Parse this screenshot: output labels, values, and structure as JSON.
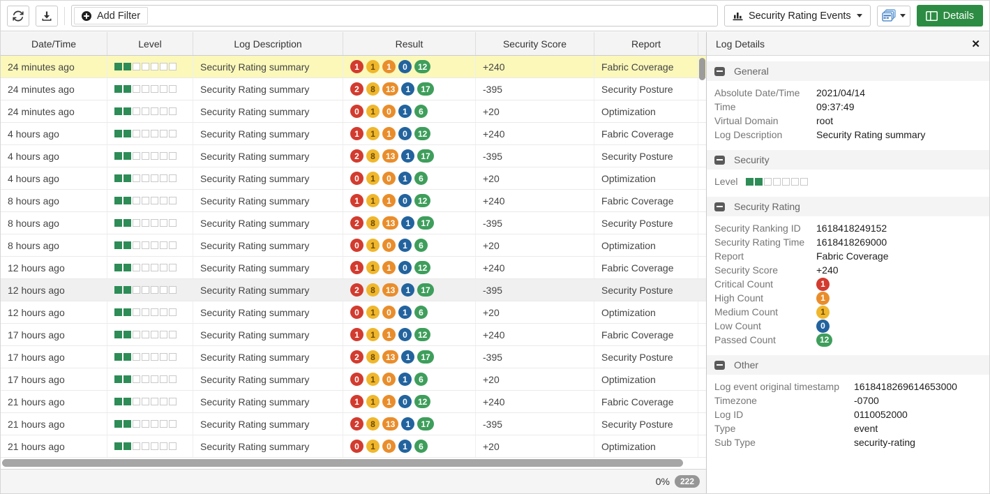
{
  "toolbar": {
    "add_filter": "Add Filter",
    "view_button": "Security Rating Events",
    "details_button": "Details"
  },
  "table": {
    "columns": [
      "Date/Time",
      "Level",
      "Log Description",
      "Result",
      "Security Score",
      "Report"
    ],
    "badge_order": [
      "critical",
      "medium",
      "high",
      "low",
      "passed"
    ],
    "level": {
      "filled": 2,
      "total": 7
    },
    "rows": [
      {
        "time": "24 minutes ago",
        "desc": "Security Rating summary",
        "badges": [
          1,
          1,
          1,
          0,
          12
        ],
        "score": "+240",
        "report": "Fabric Coverage",
        "state": "selected"
      },
      {
        "time": "24 minutes ago",
        "desc": "Security Rating summary",
        "badges": [
          2,
          8,
          13,
          1,
          17
        ],
        "score": "-395",
        "report": "Security Posture",
        "state": ""
      },
      {
        "time": "24 minutes ago",
        "desc": "Security Rating summary",
        "badges": [
          0,
          1,
          0,
          1,
          6
        ],
        "score": "+20",
        "report": "Optimization",
        "state": ""
      },
      {
        "time": "4 hours ago",
        "desc": "Security Rating summary",
        "badges": [
          1,
          1,
          1,
          0,
          12
        ],
        "score": "+240",
        "report": "Fabric Coverage",
        "state": ""
      },
      {
        "time": "4 hours ago",
        "desc": "Security Rating summary",
        "badges": [
          2,
          8,
          13,
          1,
          17
        ],
        "score": "-395",
        "report": "Security Posture",
        "state": ""
      },
      {
        "time": "4 hours ago",
        "desc": "Security Rating summary",
        "badges": [
          0,
          1,
          0,
          1,
          6
        ],
        "score": "+20",
        "report": "Optimization",
        "state": ""
      },
      {
        "time": "8 hours ago",
        "desc": "Security Rating summary",
        "badges": [
          1,
          1,
          1,
          0,
          12
        ],
        "score": "+240",
        "report": "Fabric Coverage",
        "state": ""
      },
      {
        "time": "8 hours ago",
        "desc": "Security Rating summary",
        "badges": [
          2,
          8,
          13,
          1,
          17
        ],
        "score": "-395",
        "report": "Security Posture",
        "state": ""
      },
      {
        "time": "8 hours ago",
        "desc": "Security Rating summary",
        "badges": [
          0,
          1,
          0,
          1,
          6
        ],
        "score": "+20",
        "report": "Optimization",
        "state": ""
      },
      {
        "time": "12 hours ago",
        "desc": "Security Rating summary",
        "badges": [
          1,
          1,
          1,
          0,
          12
        ],
        "score": "+240",
        "report": "Fabric Coverage",
        "state": ""
      },
      {
        "time": "12 hours ago",
        "desc": "Security Rating summary",
        "badges": [
          2,
          8,
          13,
          1,
          17
        ],
        "score": "-395",
        "report": "Security Posture",
        "state": "hover"
      },
      {
        "time": "12 hours ago",
        "desc": "Security Rating summary",
        "badges": [
          0,
          1,
          0,
          1,
          6
        ],
        "score": "+20",
        "report": "Optimization",
        "state": ""
      },
      {
        "time": "17 hours ago",
        "desc": "Security Rating summary",
        "badges": [
          1,
          1,
          1,
          0,
          12
        ],
        "score": "+240",
        "report": "Fabric Coverage",
        "state": ""
      },
      {
        "time": "17 hours ago",
        "desc": "Security Rating summary",
        "badges": [
          2,
          8,
          13,
          1,
          17
        ],
        "score": "-395",
        "report": "Security Posture",
        "state": ""
      },
      {
        "time": "17 hours ago",
        "desc": "Security Rating summary",
        "badges": [
          0,
          1,
          0,
          1,
          6
        ],
        "score": "+20",
        "report": "Optimization",
        "state": ""
      },
      {
        "time": "21 hours ago",
        "desc": "Security Rating summary",
        "badges": [
          1,
          1,
          1,
          0,
          12
        ],
        "score": "+240",
        "report": "Fabric Coverage",
        "state": ""
      },
      {
        "time": "21 hours ago",
        "desc": "Security Rating summary",
        "badges": [
          2,
          8,
          13,
          1,
          17
        ],
        "score": "-395",
        "report": "Security Posture",
        "state": ""
      },
      {
        "time": "21 hours ago",
        "desc": "Security Rating summary",
        "badges": [
          0,
          1,
          0,
          1,
          6
        ],
        "score": "+20",
        "report": "Optimization",
        "state": ""
      }
    ]
  },
  "footer": {
    "progress": "0%",
    "count": "222"
  },
  "panel": {
    "title": "Log Details",
    "sections": [
      {
        "title": "General",
        "fields": [
          {
            "label": "Absolute Date/Time",
            "value": "2021/04/14"
          },
          {
            "label": "Time",
            "value": "09:37:49"
          },
          {
            "label": "Virtual Domain",
            "value": "root"
          },
          {
            "label": "Log Description",
            "value": "Security Rating summary"
          }
        ]
      },
      {
        "title": "Security",
        "fields": [
          {
            "label": "Level",
            "type": "level"
          }
        ]
      },
      {
        "title": "Security Rating",
        "fields": [
          {
            "label": "Security Ranking ID",
            "value": "1618418249152"
          },
          {
            "label": "Security Rating Time",
            "value": "1618418269000"
          },
          {
            "label": "Report",
            "value": "Fabric Coverage"
          },
          {
            "label": "Security Score",
            "value": "+240"
          },
          {
            "label": "Critical Count",
            "value": "1",
            "type": "badge",
            "color": "critical"
          },
          {
            "label": "High Count",
            "value": "1",
            "type": "badge",
            "color": "high"
          },
          {
            "label": "Medium Count",
            "value": "1",
            "type": "badge",
            "color": "medium"
          },
          {
            "label": "Low Count",
            "value": "0",
            "type": "badge",
            "color": "low"
          },
          {
            "label": "Passed Count",
            "value": "12",
            "type": "badge",
            "color": "passed"
          }
        ]
      },
      {
        "title": "Other",
        "fields": [
          {
            "label": "Log event original timestamp",
            "value": "1618418269614653000"
          },
          {
            "label": "Timezone",
            "value": "-0700"
          },
          {
            "label": "Log ID",
            "value": "0110052000"
          },
          {
            "label": "Type",
            "value": "event"
          },
          {
            "label": "Sub Type",
            "value": "security-rating"
          }
        ]
      }
    ]
  },
  "colors": {
    "critical": "#d23b2e",
    "medium": "#f0b72d",
    "high": "#e98d2b",
    "low": "#22639e",
    "passed": "#3e9e5b",
    "level-green": "#2e8c57",
    "selected-row": "#fbf8ba",
    "details-green": "#2d8c43",
    "panel-icon-blue": "#4a86c8"
  }
}
